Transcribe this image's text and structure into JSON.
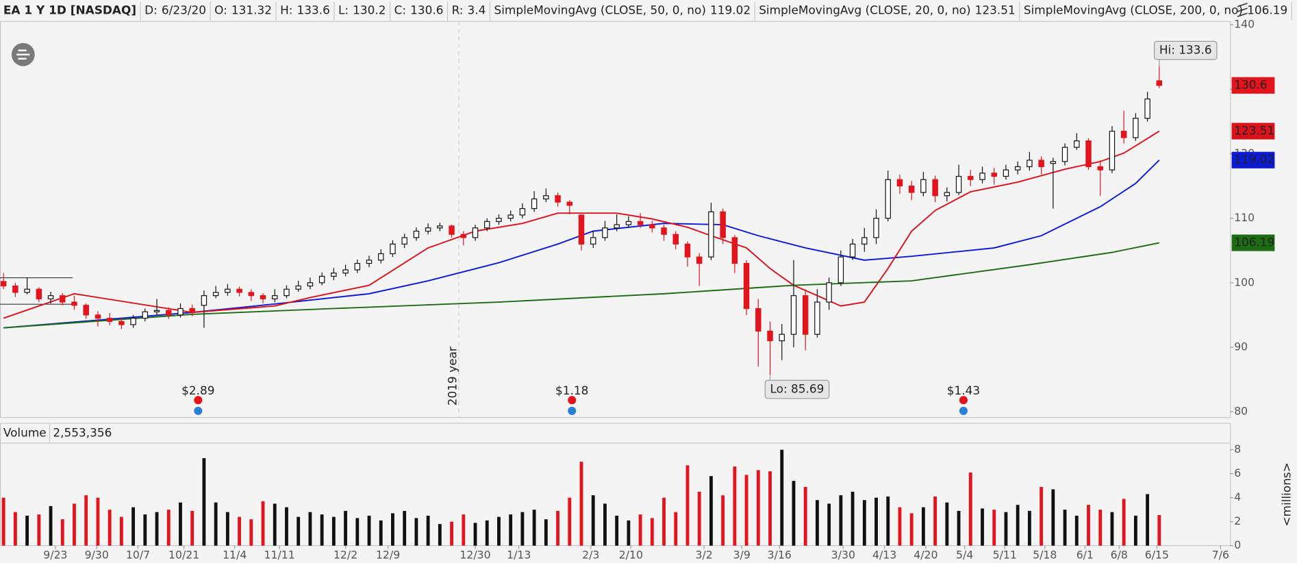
{
  "chart_data": [
    {
      "type": "candlestick",
      "header": {
        "symbol": "EA 1 Y 1D [NASDAQ]",
        "date_label": "D:",
        "date": "6/23/20",
        "open_label": "O:",
        "high_label": "H:",
        "low_label": "L:",
        "close_label": "C:",
        "range_label": "R:",
        "range": 3.4
      },
      "up_color": "#ffffff",
      "down_color": "#e3141c",
      "ohlc": [
        [
          100.2,
          101.5,
          99.0,
          99.5
        ],
        [
          99.5,
          100,
          97.8,
          98.5
        ],
        [
          98.5,
          100.8,
          98.2,
          99
        ],
        [
          99,
          99.3,
          97,
          97.5
        ],
        [
          97.5,
          98.6,
          96.8,
          98
        ],
        [
          98,
          98.4,
          96.5,
          97
        ],
        [
          97,
          98,
          95.8,
          96.5
        ],
        [
          96.5,
          96.8,
          94.4,
          95
        ],
        [
          95,
          95.6,
          93.2,
          94.5
        ],
        [
          94.5,
          95.3,
          93.4,
          94
        ],
        [
          94,
          94.6,
          92.8,
          93.5
        ],
        [
          93.5,
          95,
          93,
          94.5
        ],
        [
          94.5,
          96,
          94,
          95.5
        ],
        [
          95.5,
          97.5,
          95,
          95.7
        ],
        [
          95.7,
          96.2,
          94.4,
          95
        ],
        [
          95,
          96.8,
          94.6,
          96
        ],
        [
          96,
          96.6,
          94.8,
          95.5
        ],
        [
          96.5,
          98.8,
          93,
          98
        ],
        [
          98,
          99.5,
          97.6,
          98.5
        ],
        [
          98.5,
          99.8,
          98,
          99
        ],
        [
          99,
          99.4,
          97.9,
          98.5
        ],
        [
          98.5,
          99,
          97.2,
          98
        ],
        [
          98,
          98.4,
          96.8,
          97.5
        ],
        [
          97.5,
          99,
          97,
          98
        ],
        [
          98,
          99.6,
          97.6,
          99
        ],
        [
          99,
          100.3,
          98.6,
          99.5
        ],
        [
          99.5,
          100.8,
          99,
          100
        ],
        [
          100,
          101.6,
          99.6,
          101
        ],
        [
          101,
          102.3,
          100.4,
          101.5
        ],
        [
          101.5,
          102.8,
          101,
          102
        ],
        [
          102,
          103.6,
          101.5,
          103
        ],
        [
          103,
          104.2,
          102.4,
          103.5
        ],
        [
          103.5,
          105.2,
          103,
          104.5
        ],
        [
          104.5,
          106.6,
          104,
          106
        ],
        [
          106,
          107.6,
          105.4,
          107
        ],
        [
          107,
          108.6,
          106.5,
          108
        ],
        [
          108,
          109.2,
          107.5,
          108.5
        ],
        [
          108.5,
          109.3,
          108,
          108.8
        ],
        [
          108.8,
          109,
          107,
          107.5
        ],
        [
          107.5,
          108,
          105.8,
          107
        ],
        [
          107,
          109,
          106.5,
          108.5
        ],
        [
          108.5,
          110,
          108,
          109.5
        ],
        [
          109.5,
          110.6,
          109,
          110
        ],
        [
          110,
          111.2,
          109.5,
          110.5
        ],
        [
          110.5,
          112.3,
          110,
          111.5
        ],
        [
          111.5,
          114.2,
          111,
          113
        ],
        [
          113,
          114.6,
          112.5,
          113.5
        ],
        [
          113.5,
          114,
          111.8,
          112.5
        ],
        [
          112.5,
          112.8,
          110.6,
          112
        ],
        [
          110.5,
          110.6,
          105,
          106
        ],
        [
          106,
          108,
          105.4,
          107
        ],
        [
          107,
          109.6,
          106.5,
          108.5
        ],
        [
          108.5,
          110.6,
          108,
          109
        ],
        [
          109,
          110.3,
          108.6,
          109.5
        ],
        [
          109.5,
          110.8,
          108.5,
          109
        ],
        [
          109,
          109.6,
          107.8,
          108.5
        ],
        [
          108.5,
          109,
          106.5,
          107.5
        ],
        [
          107.5,
          108,
          105.2,
          106
        ],
        [
          106,
          106.4,
          102.5,
          104
        ],
        [
          104,
          104.6,
          99.5,
          103
        ],
        [
          104,
          112.4,
          103.5,
          111
        ],
        [
          111,
          111.5,
          106,
          107
        ],
        [
          107,
          107.4,
          101.5,
          103
        ],
        [
          103,
          103.5,
          95,
          96
        ],
        [
          96,
          97.5,
          87,
          92.5
        ],
        [
          92.5,
          94,
          85.69,
          91
        ],
        [
          91,
          93.6,
          88,
          92
        ],
        [
          92,
          103.5,
          90,
          98
        ],
        [
          98,
          99,
          89.5,
          92
        ],
        [
          92,
          99,
          91.5,
          97
        ],
        [
          97,
          100.8,
          95.8,
          100
        ],
        [
          100,
          105,
          99.5,
          104
        ],
        [
          104,
          106.8,
          103.5,
          106
        ],
        [
          106,
          108.5,
          104.8,
          107
        ],
        [
          107,
          111.4,
          106,
          110
        ],
        [
          110,
          117.4,
          109.5,
          116
        ],
        [
          116,
          116.8,
          113.8,
          115
        ],
        [
          115,
          115.8,
          112.8,
          114
        ],
        [
          114,
          117.2,
          113.4,
          116
        ],
        [
          116,
          116.6,
          112.5,
          113.5
        ],
        [
          113.5,
          114.8,
          112.6,
          114
        ],
        [
          114,
          118.3,
          113.6,
          116.5
        ],
        [
          116.5,
          117.5,
          115,
          116
        ],
        [
          116,
          118,
          115.4,
          117
        ],
        [
          117,
          117.8,
          115.2,
          116.5
        ],
        [
          116.5,
          118.3,
          116,
          117.5
        ],
        [
          117.5,
          118.8,
          116.8,
          118
        ],
        [
          118,
          120.3,
          117.4,
          119
        ],
        [
          119,
          119.6,
          116.8,
          118
        ],
        [
          118.5,
          119.4,
          111.5,
          118.8
        ],
        [
          118.8,
          121.6,
          118.2,
          121
        ],
        [
          121,
          123.2,
          120.6,
          122
        ],
        [
          122,
          122.4,
          117.5,
          118
        ],
        [
          118,
          119,
          113.5,
          117.5
        ],
        [
          117.5,
          124.3,
          117,
          123.5
        ],
        [
          123.5,
          126.7,
          121.6,
          122.5
        ],
        [
          122.5,
          126.3,
          122,
          125.5
        ],
        [
          125.5,
          129.6,
          125,
          128.5
        ],
        [
          131.32,
          133.6,
          130.2,
          130.6
        ]
      ],
      "series": [
        {
          "name": "SimpleMovingAvg (CLOSE, 50, 0, no)",
          "color": "#0c1ad6",
          "x": [
            0,
            10,
            16,
            23,
            31,
            36,
            42,
            47,
            50,
            56,
            61,
            64,
            68,
            73,
            77,
            84,
            88,
            93,
            96,
            98
          ],
          "values": [
            93,
            94.5,
            95.4,
            96.7,
            98.3,
            100.3,
            103.1,
            106,
            108,
            109.2,
            109,
            107.3,
            105.4,
            103.5,
            104.1,
            105.4,
            107.3,
            111.8,
            115.4,
            119.02
          ]
        },
        {
          "name": "SimpleMovingAvg (CLOSE, 20, 0, no)",
          "color": "#d9121b",
          "x": [
            0,
            6,
            16,
            23,
            26,
            31,
            36,
            40,
            44,
            47,
            52,
            55,
            58,
            60,
            63,
            65,
            67,
            71,
            73,
            75,
            77,
            79,
            82,
            86,
            90,
            93,
            95,
            98
          ],
          "values": [
            94.5,
            98.3,
            95.4,
            96.4,
            97.7,
            99.6,
            105.4,
            108,
            109.2,
            110.8,
            110.8,
            109.9,
            108.6,
            107.3,
            105.4,
            102.2,
            99.6,
            96.4,
            97,
            102.2,
            108,
            111.2,
            114.1,
            115.6,
            117.6,
            118.8,
            120.1,
            123.51
          ]
        },
        {
          "name": "SimpleMovingAvg (CLOSE, 200, 0, no)",
          "color": "#1d6b12",
          "x": [
            0,
            16,
            28,
            42,
            56,
            67,
            77,
            87,
            94,
            98
          ],
          "values": [
            93,
            95.1,
            96,
            97,
            98.3,
            99.6,
            100.3,
            102.8,
            104.7,
            106.19
          ]
        }
      ],
      "annotations": {
        "hi_label": "Hi:",
        "lo_label": "Lo:"
      },
      "events": [
        {
          "x": 16.5,
          "label": "$2.89"
        },
        {
          "x": 48.2,
          "label": "$1.18"
        },
        {
          "x": 81.4,
          "label": "$1.43"
        }
      ],
      "year_marker": {
        "x": 38.6,
        "label": "2019 year"
      },
      "xlim": [
        -0.3,
        104
      ],
      "xticks": [
        {
          "value": 4.4,
          "label": "9/23"
        },
        {
          "value": 7.9,
          "label": "9/30"
        },
        {
          "value": 11.4,
          "label": "10/7"
        },
        {
          "value": 15.3,
          "label": "10/21"
        },
        {
          "value": 19.6,
          "label": "11/4"
        },
        {
          "value": 23.4,
          "label": "11/11"
        },
        {
          "value": 29.0,
          "label": "12/2"
        },
        {
          "value": 32.6,
          "label": "12/9"
        },
        {
          "value": 40.0,
          "label": "12/30"
        },
        {
          "value": 43.7,
          "label": "1/13"
        },
        {
          "value": 49.8,
          "label": "2/3"
        },
        {
          "value": 53.2,
          "label": "2/10"
        },
        {
          "value": 59.4,
          "label": "3/2"
        },
        {
          "value": 62.6,
          "label": "3/9"
        },
        {
          "value": 65.8,
          "label": "3/16"
        },
        {
          "value": 71.2,
          "label": "3/30"
        },
        {
          "value": 74.7,
          "label": "4/13"
        },
        {
          "value": 78.2,
          "label": "4/20"
        },
        {
          "value": 81.5,
          "label": "5/4"
        },
        {
          "value": 84.9,
          "label": "5/11"
        },
        {
          "value": 88.3,
          "label": "5/18"
        },
        {
          "value": 91.7,
          "label": "6/1"
        },
        {
          "value": 94.6,
          "label": "6/8"
        },
        {
          "value": 97.8,
          "label": "6/15"
        },
        {
          "value": 103.2,
          "label": "7/6"
        }
      ],
      "ylim": [
        80,
        140
      ],
      "yticks": [
        80,
        90,
        100,
        110,
        120,
        130,
        140
      ]
    },
    {
      "type": "bar",
      "title": "Volume",
      "last_value": {
        "value": 2553356,
        "label": "2,553,356"
      },
      "ylabel": "<millions>",
      "up_color": "#111111",
      "down_color": "#e3141c",
      "values": [
        4.0,
        2.8,
        2.5,
        2.6,
        3.3,
        2.2,
        3.5,
        4.2,
        4.0,
        3.0,
        2.4,
        3.2,
        2.6,
        2.8,
        3.0,
        3.6,
        2.9,
        7.3,
        3.6,
        2.8,
        2.4,
        2.2,
        3.7,
        3.5,
        3.2,
        2.4,
        2.8,
        2.6,
        2.4,
        2.9,
        2.3,
        2.5,
        2.1,
        2.7,
        2.9,
        2.3,
        2.5,
        1.8,
        2.0,
        2.6,
        1.9,
        2.1,
        2.4,
        2.6,
        2.8,
        3.0,
        2.2,
        2.9,
        4.0,
        7.0,
        4.2,
        3.5,
        2.5,
        2.1,
        2.6,
        2.3,
        4.0,
        2.8,
        6.7,
        4.5,
        5.8,
        4.2,
        6.6,
        5.9,
        6.3,
        6.2,
        8.0,
        5.4,
        4.9,
        3.8,
        3.5,
        4.2,
        4.5,
        3.8,
        4.0,
        4.1,
        3.2,
        2.7,
        3.2,
        4.1,
        3.6,
        2.9,
        6.1,
        3.1,
        3.0,
        2.8,
        3.4,
        2.9,
        4.9,
        4.7,
        3.0,
        2.5,
        3.4,
        3.0,
        2.8,
        3.9,
        2.5,
        4.3,
        2.553356
      ],
      "ylim": [
        0,
        8
      ],
      "yticks": [
        0,
        2,
        4,
        6,
        8
      ]
    }
  ]
}
